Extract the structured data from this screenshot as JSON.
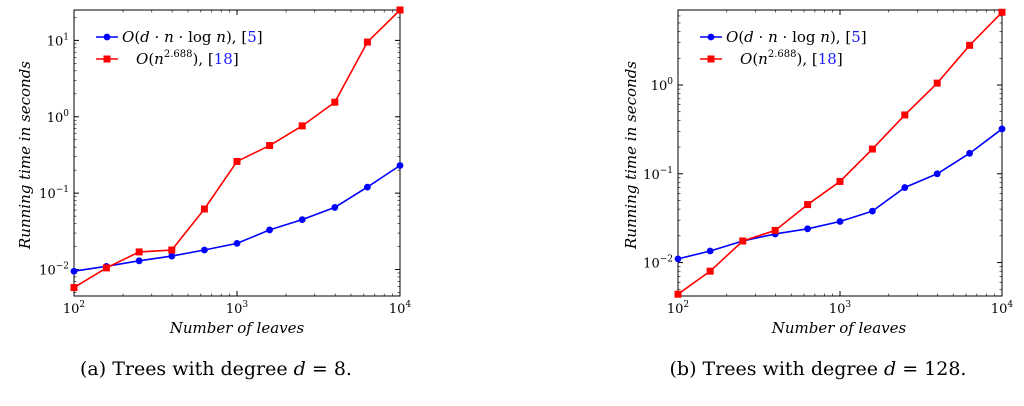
{
  "figure": {
    "subfigures": [
      {
        "caption": "(a) Trees with degree d = 8.",
        "caption_parts": {
          "prefix": "(a) Trees with degree ",
          "var": "d",
          "rest": " = 8."
        }
      },
      {
        "caption": "(b) Trees with degree d = 128.",
        "caption_parts": {
          "prefix": "(b) Trees with degree ",
          "var": "d",
          "rest": " = 128."
        }
      }
    ]
  },
  "legend": {
    "entries": [
      {
        "formula": "O(d · n · log n)",
        "ref": "5",
        "color": "#0000ff",
        "marker": "circle"
      },
      {
        "formula": "O(n^2.688)",
        "ref": "18",
        "color": "#ff0000",
        "marker": "square"
      }
    ]
  },
  "chart_data": [
    {
      "type": "line",
      "title": "",
      "xlabel": "Number of leaves",
      "ylabel": "Running time in seconds",
      "xscale": "log",
      "yscale": "log",
      "xlim": [
        100,
        10000
      ],
      "ylim": [
        0.0045,
        25
      ],
      "xticks": [
        100,
        1000,
        10000
      ],
      "xtick_labels": [
        "10^2",
        "10^3",
        "10^4"
      ],
      "yticks": [
        0.01,
        0.1,
        1,
        10
      ],
      "ytick_labels": [
        "10^-2",
        "10^-1",
        "10^0",
        "10^1"
      ],
      "legend_position": "top-left",
      "grid": false,
      "x": [
        100,
        158,
        251,
        398,
        631,
        1000,
        1585,
        2512,
        3981,
        6310,
        10000
      ],
      "series": [
        {
          "name": "O(d · n · log n), [5]",
          "color": "#0000ff",
          "marker": "circle",
          "values": [
            0.0095,
            0.011,
            0.013,
            0.015,
            0.018,
            0.022,
            0.033,
            0.045,
            0.065,
            0.12,
            0.23
          ]
        },
        {
          "name": "O(n^2.688), [18]",
          "color": "#ff0000",
          "marker": "square",
          "values": [
            0.0058,
            0.0105,
            0.017,
            0.018,
            0.062,
            0.26,
            0.42,
            0.76,
            1.55,
            9.5,
            25
          ]
        }
      ]
    },
    {
      "type": "line",
      "title": "",
      "xlabel": "Number of leaves",
      "ylabel": "Running time in seconds",
      "xscale": "log",
      "yscale": "log",
      "xlim": [
        100,
        10000
      ],
      "ylim": [
        0.0042,
        7
      ],
      "xticks": [
        100,
        1000,
        10000
      ],
      "xtick_labels": [
        "10^2",
        "10^3",
        "10^4"
      ],
      "yticks": [
        0.01,
        0.1,
        1
      ],
      "ytick_labels": [
        "10^-2",
        "10^-1",
        "10^0"
      ],
      "legend_position": "top-left",
      "grid": false,
      "x": [
        100,
        158,
        251,
        398,
        631,
        1000,
        1585,
        2512,
        3981,
        6310,
        10000
      ],
      "series": [
        {
          "name": "O(d · n · log n), [5]",
          "color": "#0000ff",
          "marker": "circle",
          "values": [
            0.011,
            0.0135,
            0.0175,
            0.021,
            0.024,
            0.029,
            0.038,
            0.07,
            0.1,
            0.17,
            0.32
          ]
        },
        {
          "name": "O(n^2.688), [18]",
          "color": "#ff0000",
          "marker": "square",
          "values": [
            0.0044,
            0.008,
            0.0175,
            0.023,
            0.045,
            0.082,
            0.19,
            0.46,
            1.05,
            2.8,
            6.6
          ]
        }
      ]
    }
  ]
}
